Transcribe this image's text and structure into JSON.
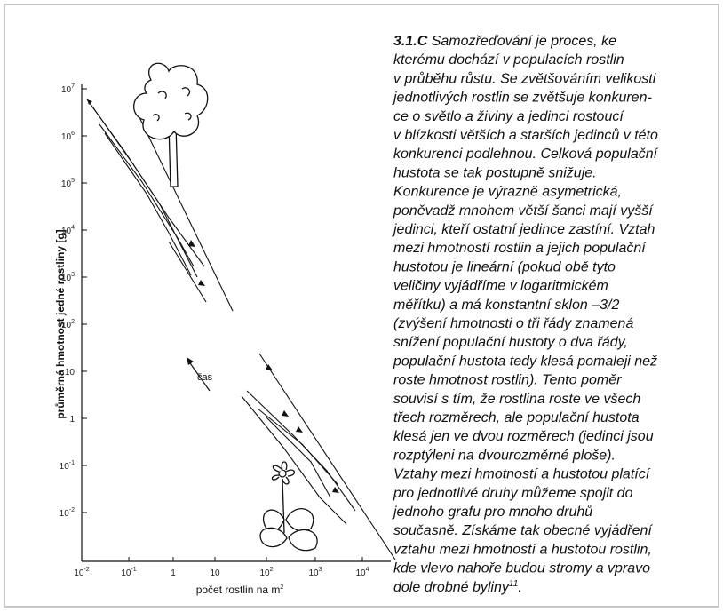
{
  "figure": {
    "y_axis_label": "průměrná hmotnost jedné rostliny [g]",
    "x_axis_label": "počet rostlin na m",
    "x_axis_label_sup": "2",
    "annotation": "čas",
    "y_ticks": [
      {
        "base": "10",
        "exponent": "7"
      },
      {
        "base": "10",
        "exponent": "6"
      },
      {
        "base": "10",
        "exponent": "5"
      },
      {
        "base": "10",
        "exponent": "4"
      },
      {
        "base": "10",
        "exponent": "3"
      },
      {
        "base": "10",
        "exponent": "2"
      },
      {
        "base": "10"
      },
      {
        "base": "1"
      },
      {
        "base": "10",
        "exponent": "-1"
      },
      {
        "base": "10",
        "exponent": "-2"
      }
    ],
    "x_ticks": [
      {
        "base": "10",
        "exponent": "-2"
      },
      {
        "base": "10",
        "exponent": "-1"
      },
      {
        "base": "1"
      },
      {
        "base": "10"
      },
      {
        "base": "10",
        "exponent": "2"
      },
      {
        "base": "10",
        "exponent": "3"
      },
      {
        "base": "10",
        "exponent": "4"
      }
    ]
  },
  "caption": {
    "label": "3.1.C",
    "lines": [
      " Samozřeďování je proces, ke",
      "kterému dochází v populacích rostlin",
      "v průběhu růstu. Se zvětšováním velikosti",
      "jednotlivých rostlin se zvětšuje konkuren-",
      "ce o světlo a živiny a jedinci rostoucí",
      "v blízkosti větších a starších jedinců v této",
      "konkurenci podlehnou. Celková populační",
      "hustota se tak postupně snižuje.",
      "Konkurence je výrazně asymetrická,",
      "poněvadž mnohem větší šanci mají vyšší",
      "jedinci, kteří ostatní jedince zastíní. Vztah",
      "mezi hmotností rostlin a jejich populační",
      "hustotou je lineární (pokud obě tyto",
      "veličiny vyjádříme v logaritmickém",
      "měřítku) a má konstantní sklon –3/2",
      "(zvýšení hmotnosti o tři řády znamená",
      "snížení populační hustoty o dva řády,",
      "populační hustota tedy klesá pomaleji než",
      "roste hmotnost rostlin). Tento poměr",
      "souvisí s tím, že rostlina roste ve všech",
      "třech rozměrech, ale populační hustota",
      "klesá jen ve dvou rozměrech (jedinci jsou",
      "rozptýleni na dvourozměrné ploše).",
      "Vztahy mezi hmotností a hustotou platící",
      "pro jednotlivé druhy můžeme spojit do",
      "jednoho grafu pro mnoho druhů",
      "současně. Získáme tak obecné vyjádření",
      "vztahu mezi hmotností a hustotou rostlin,",
      "kde vlevo nahoře budou stromy a vpravo",
      "dole drobné byliny"
    ],
    "footnote_ref": "11",
    "end": "."
  }
}
